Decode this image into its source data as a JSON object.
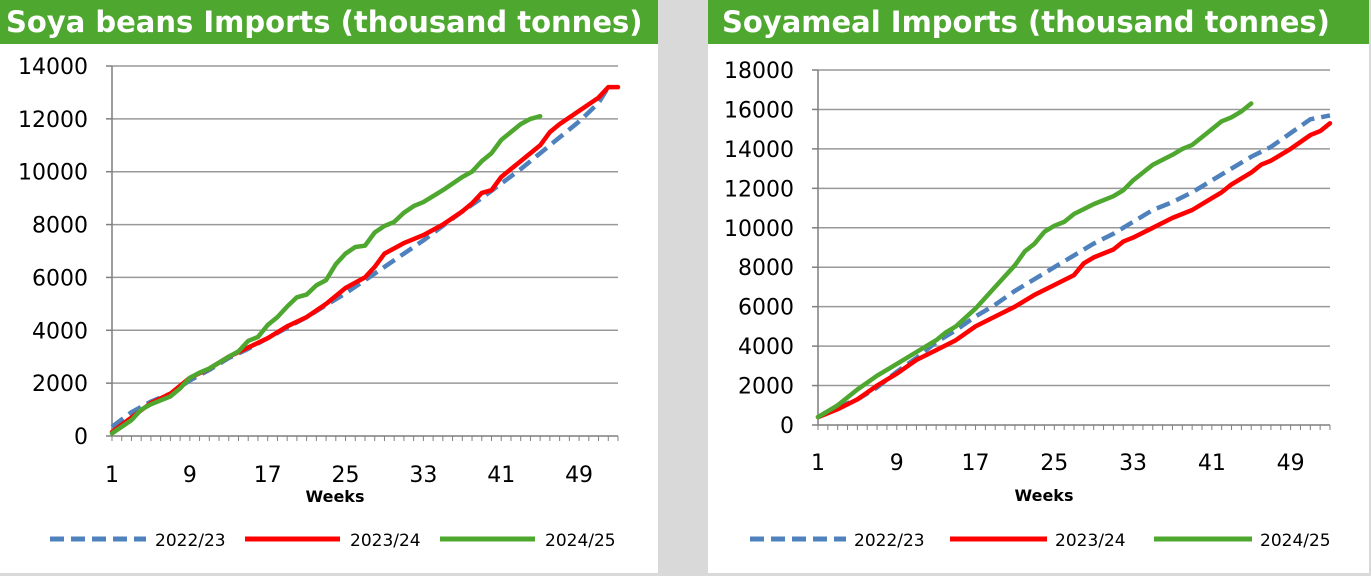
{
  "colors": {
    "banner": "#4ea72e",
    "s2022": "#4f81bd",
    "s2023": "#ff0000",
    "s2024": "#4ea72e",
    "grid": "#999999",
    "axis": "#7f7f7f"
  },
  "chart_data": [
    {
      "type": "line",
      "title": "Soya beans Imports (thousand tonnes)",
      "xlabel": "Weeks",
      "ylabel": "",
      "ylim": [
        0,
        14000
      ],
      "xlim": [
        1,
        53
      ],
      "yticks": [
        0,
        2000,
        4000,
        6000,
        8000,
        10000,
        12000,
        14000
      ],
      "xticks": [
        1,
        9,
        17,
        25,
        33,
        41,
        49
      ],
      "grid": true,
      "legend_position": "bottom",
      "series": [
        {
          "name": "2022/23",
          "style": "dashed",
          "color": "#4f81bd",
          "points": [
            [
              1,
              350
            ],
            [
              3,
              900
            ],
            [
              5,
              1300
            ],
            [
              7,
              1600
            ],
            [
              9,
              2100
            ],
            [
              11,
              2500
            ],
            [
              13,
              2950
            ],
            [
              15,
              3300
            ],
            [
              17,
              3700
            ],
            [
              19,
              4100
            ],
            [
              21,
              4500
            ],
            [
              23,
              4950
            ],
            [
              25,
              5400
            ],
            [
              27,
              5900
            ],
            [
              29,
              6400
            ],
            [
              31,
              6900
            ],
            [
              33,
              7400
            ],
            [
              35,
              7950
            ],
            [
              37,
              8500
            ],
            [
              39,
              9000
            ],
            [
              41,
              9550
            ],
            [
              43,
              10100
            ],
            [
              45,
              10700
            ],
            [
              47,
              11300
            ],
            [
              49,
              11900
            ],
            [
              51,
              12600
            ],
            [
              52,
              13200
            ]
          ]
        },
        {
          "name": "2023/24",
          "style": "solid",
          "color": "#ff0000",
          "points": [
            [
              1,
              150
            ],
            [
              3,
              700
            ],
            [
              5,
              1250
            ],
            [
              7,
              1600
            ],
            [
              8,
              1900
            ],
            [
              9,
              2200
            ],
            [
              11,
              2550
            ],
            [
              13,
              3000
            ],
            [
              15,
              3350
            ],
            [
              17,
              3700
            ],
            [
              19,
              4150
            ],
            [
              21,
              4500
            ],
            [
              23,
              5000
            ],
            [
              25,
              5600
            ],
            [
              27,
              6000
            ],
            [
              28,
              6400
            ],
            [
              29,
              6900
            ],
            [
              31,
              7300
            ],
            [
              33,
              7600
            ],
            [
              35,
              8000
            ],
            [
              37,
              8500
            ],
            [
              38,
              8800
            ],
            [
              39,
              9200
            ],
            [
              40,
              9300
            ],
            [
              41,
              9800
            ],
            [
              43,
              10400
            ],
            [
              45,
              11000
            ],
            [
              46,
              11500
            ],
            [
              47,
              11800
            ],
            [
              49,
              12300
            ],
            [
              51,
              12800
            ],
            [
              52,
              13200
            ],
            [
              53,
              13200
            ]
          ]
        },
        {
          "name": "2024/25",
          "style": "solid",
          "color": "#4ea72e",
          "points": [
            [
              1,
              100
            ],
            [
              3,
              600
            ],
            [
              4,
              1000
            ],
            [
              5,
              1200
            ],
            [
              7,
              1500
            ],
            [
              8,
              1800
            ],
            [
              9,
              2200
            ],
            [
              10,
              2400
            ],
            [
              11,
              2550
            ],
            [
              13,
              3000
            ],
            [
              14,
              3200
            ],
            [
              15,
              3600
            ],
            [
              16,
              3750
            ],
            [
              17,
              4200
            ],
            [
              18,
              4500
            ],
            [
              19,
              4900
            ],
            [
              20,
              5250
            ],
            [
              21,
              5350
            ],
            [
              22,
              5700
            ],
            [
              23,
              5900
            ],
            [
              24,
              6500
            ],
            [
              25,
              6900
            ],
            [
              26,
              7150
            ],
            [
              27,
              7200
            ],
            [
              28,
              7700
            ],
            [
              29,
              7950
            ],
            [
              30,
              8100
            ],
            [
              31,
              8450
            ],
            [
              32,
              8700
            ],
            [
              33,
              8850
            ],
            [
              35,
              9300
            ],
            [
              37,
              9800
            ],
            [
              38,
              10000
            ],
            [
              39,
              10400
            ],
            [
              40,
              10700
            ],
            [
              41,
              11200
            ],
            [
              43,
              11800
            ],
            [
              44,
              12000
            ],
            [
              45,
              12100
            ]
          ]
        }
      ]
    },
    {
      "type": "line",
      "title": "Soyameal Imports (thousand tonnes)",
      "xlabel": "Weeks",
      "ylabel": "",
      "ylim": [
        0,
        18000
      ],
      "xlim": [
        1,
        53
      ],
      "yticks": [
        0,
        2000,
        4000,
        6000,
        8000,
        10000,
        12000,
        14000,
        16000,
        18000
      ],
      "xticks": [
        1,
        9,
        17,
        25,
        33,
        41,
        49
      ],
      "grid": true,
      "legend_position": "bottom",
      "series": [
        {
          "name": "2022/23",
          "style": "dashed",
          "color": "#4f81bd",
          "points": [
            [
              1,
              400
            ],
            [
              3,
              900
            ],
            [
              5,
              1300
            ],
            [
              7,
              1900
            ],
            [
              9,
              2700
            ],
            [
              11,
              3400
            ],
            [
              13,
              4200
            ],
            [
              15,
              4800
            ],
            [
              17,
              5500
            ],
            [
              19,
              6100
            ],
            [
              21,
              6800
            ],
            [
              23,
              7400
            ],
            [
              25,
              8000
            ],
            [
              27,
              8600
            ],
            [
              29,
              9200
            ],
            [
              31,
              9700
            ],
            [
              33,
              10300
            ],
            [
              35,
              10900
            ],
            [
              37,
              11300
            ],
            [
              39,
              11800
            ],
            [
              41,
              12400
            ],
            [
              43,
              13000
            ],
            [
              45,
              13600
            ],
            [
              47,
              14100
            ],
            [
              49,
              14800
            ],
            [
              51,
              15500
            ],
            [
              53,
              15700
            ]
          ]
        },
        {
          "name": "2023/24",
          "style": "solid",
          "color": "#ff0000",
          "points": [
            [
              1,
              400
            ],
            [
              3,
              800
            ],
            [
              5,
              1300
            ],
            [
              7,
              2000
            ],
            [
              9,
              2600
            ],
            [
              11,
              3300
            ],
            [
              13,
              3800
            ],
            [
              15,
              4300
            ],
            [
              17,
              5000
            ],
            [
              19,
              5500
            ],
            [
              21,
              6000
            ],
            [
              23,
              6600
            ],
            [
              25,
              7100
            ],
            [
              27,
              7600
            ],
            [
              28,
              8200
            ],
            [
              29,
              8500
            ],
            [
              31,
              8900
            ],
            [
              32,
              9300
            ],
            [
              33,
              9500
            ],
            [
              35,
              10000
            ],
            [
              37,
              10500
            ],
            [
              39,
              10900
            ],
            [
              41,
              11500
            ],
            [
              42,
              11800
            ],
            [
              43,
              12200
            ],
            [
              45,
              12800
            ],
            [
              46,
              13200
            ],
            [
              47,
              13400
            ],
            [
              49,
              14000
            ],
            [
              51,
              14700
            ],
            [
              52,
              14900
            ],
            [
              53,
              15300
            ]
          ]
        },
        {
          "name": "2024/25",
          "style": "solid",
          "color": "#4ea72e",
          "points": [
            [
              1,
              400
            ],
            [
              3,
              1000
            ],
            [
              5,
              1800
            ],
            [
              7,
              2500
            ],
            [
              9,
              3100
            ],
            [
              11,
              3700
            ],
            [
              13,
              4300
            ],
            [
              14,
              4700
            ],
            [
              15,
              5000
            ],
            [
              17,
              5900
            ],
            [
              19,
              7000
            ],
            [
              21,
              8100
            ],
            [
              22,
              8800
            ],
            [
              23,
              9200
            ],
            [
              24,
              9800
            ],
            [
              25,
              10100
            ],
            [
              26,
              10300
            ],
            [
              27,
              10700
            ],
            [
              29,
              11200
            ],
            [
              31,
              11600
            ],
            [
              32,
              11900
            ],
            [
              33,
              12400
            ],
            [
              35,
              13200
            ],
            [
              37,
              13700
            ],
            [
              38,
              14000
            ],
            [
              39,
              14200
            ],
            [
              40,
              14600
            ],
            [
              41,
              15000
            ],
            [
              42,
              15400
            ],
            [
              43,
              15600
            ],
            [
              44,
              15900
            ],
            [
              45,
              16300
            ]
          ]
        }
      ]
    }
  ]
}
